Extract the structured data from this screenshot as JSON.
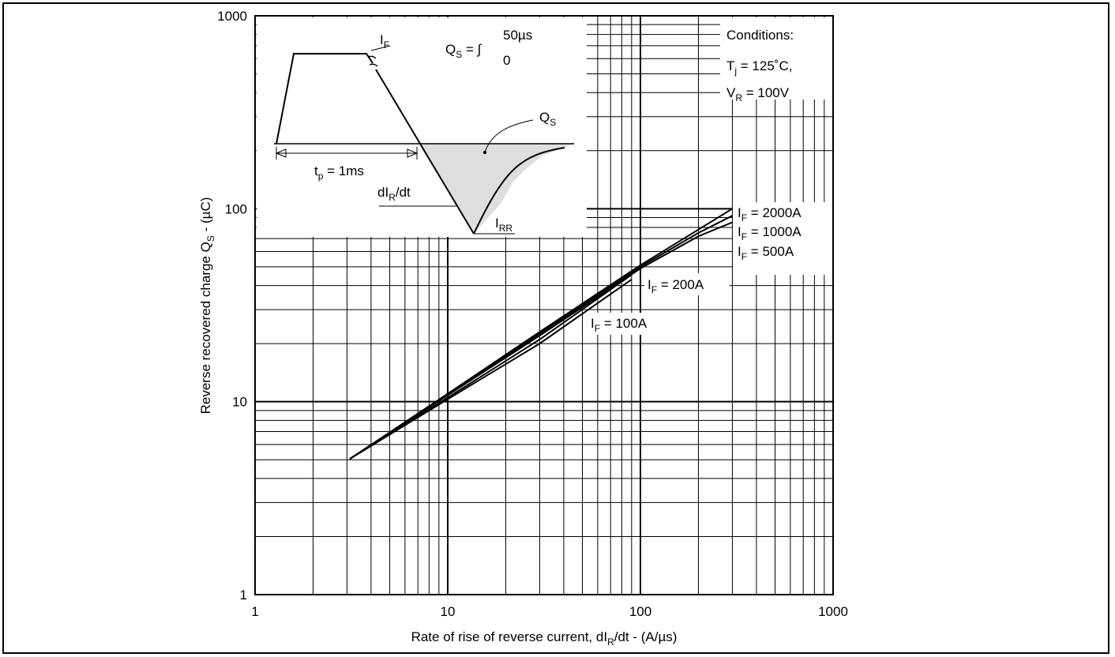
{
  "chart_data": {
    "type": "line",
    "x_scale": "log",
    "y_scale": "log",
    "xlim": [
      1,
      1000
    ],
    "ylim": [
      1,
      1000
    ],
    "grid": true,
    "xlabel": {
      "pre": "Rate of rise of reverse current, dI",
      "sub": "R",
      "post": "/dt - (A/µs)"
    },
    "ylabel": {
      "pre": "Reverse recovered charge Q",
      "sub": "S",
      "post": " - (µC)"
    },
    "x_ticks": [
      {
        "value": 1,
        "label": "1"
      },
      {
        "value": 10,
        "label": "10"
      },
      {
        "value": 100,
        "label": "100"
      },
      {
        "value": 1000,
        "label": "1000"
      }
    ],
    "y_ticks": [
      {
        "value": 1,
        "label": "1"
      },
      {
        "value": 10,
        "label": "10"
      },
      {
        "value": 100,
        "label": "100"
      },
      {
        "value": 1000,
        "label": "1000"
      }
    ],
    "series": [
      {
        "name": "IF = 100A",
        "label": {
          "pre": "I",
          "sub": "F",
          "post": " = 100A"
        },
        "x": [
          3.1,
          10,
          30,
          90
        ],
        "y": [
          5.05,
          10.3,
          20.0,
          43.0
        ]
      },
      {
        "name": "IF = 200A",
        "label": {
          "pre": "I",
          "sub": "F",
          "post": " = 200A"
        },
        "x": [
          3.1,
          10,
          30,
          90
        ],
        "y": [
          5.05,
          10.5,
          21.0,
          45.5
        ]
      },
      {
        "name": "IF = 500A",
        "label": {
          "pre": "I",
          "sub": "F",
          "post": " = 500A"
        },
        "x": [
          3.1,
          10,
          30,
          100,
          200,
          300
        ],
        "y": [
          5.05,
          10.8,
          22.0,
          49.0,
          72.0,
          85.0
        ]
      },
      {
        "name": "IF = 1000A",
        "label": {
          "pre": "I",
          "sub": "F",
          "post": " = 1000A"
        },
        "x": [
          3.1,
          10,
          30,
          100,
          200,
          300
        ],
        "y": [
          5.05,
          10.9,
          22.5,
          50.0,
          75.0,
          92.0
        ]
      },
      {
        "name": "IF = 2000A",
        "label": {
          "pre": "I",
          "sub": "F",
          "post": " = 2000A"
        },
        "x": [
          3.1,
          10,
          30,
          100,
          200,
          300
        ],
        "y": [
          5.05,
          11.0,
          23.0,
          51.0,
          78.0,
          100.0
        ]
      }
    ],
    "conditions": {
      "title": "Conditions:",
      "tj": {
        "pre": "T",
        "sub": "j",
        "post": " = 125˚C,"
      },
      "vr": {
        "pre": "V",
        "sub": "R",
        "post": " = 100V"
      }
    },
    "inset": {
      "if_label": {
        "pre": "I",
        "sub": "F"
      },
      "qs_eq": {
        "pre": "Q",
        "sub": "S",
        "post": " = ∫"
      },
      "int_upper": "50µs",
      "int_lower": "0",
      "qs_label": {
        "pre": "Q",
        "sub": "S"
      },
      "tp_label": {
        "pre": "t",
        "sub": "p",
        "post": " = 1ms"
      },
      "dir_label": {
        "pre": "dI",
        "sub": "R",
        "post": "/dt"
      },
      "irr_label": {
        "pre": "I",
        "sub": "RR"
      }
    }
  }
}
